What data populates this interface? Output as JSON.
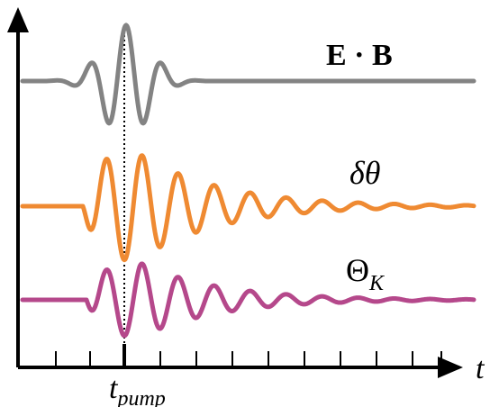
{
  "labels": {
    "top": "E · B",
    "middle": "δθ",
    "bottom_main": "Θ",
    "bottom_sub": "K",
    "t_axis": "t",
    "pump_main": "t",
    "pump_sub": "pump"
  },
  "colors": {
    "top": "#838383",
    "middle": "#ef8a32",
    "bottom": "#b5488b",
    "axis": "#000000"
  },
  "ticks": {
    "minor_count": 12,
    "pump_marker": true
  }
}
